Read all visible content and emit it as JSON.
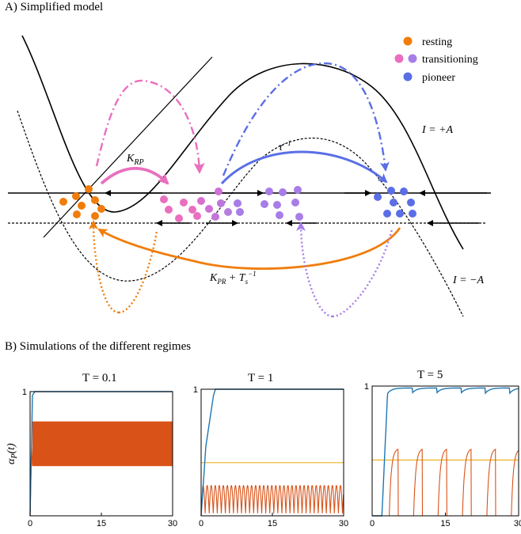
{
  "panel_a": {
    "heading": "A) Simplified model",
    "legend": [
      {
        "label": "resting",
        "colors": [
          "#f07d0b"
        ]
      },
      {
        "label": "transitioning",
        "colors": [
          "#ea6fbf",
          "#a77de8"
        ]
      },
      {
        "label": "pioneer",
        "colors": [
          "#5a6ee6"
        ]
      }
    ],
    "labels": {
      "krp": "K",
      "krp_sub": "RP",
      "tau": "τ",
      "tau_sup": "−1",
      "i_plus": "I = +A",
      "i_minus": "I = −A",
      "kpr": "K",
      "kpr_sub": "PR",
      "kpr_plus": " + T",
      "kpr_ts_sub": "s",
      "kpr_ts_sup": "−1"
    },
    "colors": {
      "resting": "#f07d0b",
      "transition_pink": "#ea6fbf",
      "transition_purple": "#a77de8",
      "pioneer": "#5a6ee6",
      "arrow_orange": "#f07d0b",
      "arrow_pink": "#ea6fbf",
      "arrow_blue": "#5a6ee6",
      "arrow_purple": "#a77de8"
    }
  },
  "panel_b": {
    "heading": "B) Simulations of the different regimes",
    "ylabel": "α",
    "ylabel_sub": "P",
    "ylabel_arg": "(t)",
    "colors": {
      "pioneer": "#1f77b4",
      "resting": "#d95319",
      "threshold": "#edb120"
    },
    "charts": [
      {
        "title": "T = 0.1",
        "xticks": [
          "0",
          "15",
          "30"
        ],
        "yticks": [
          "1"
        ]
      },
      {
        "title": "T = 1",
        "xticks": [
          "0",
          "15",
          "30"
        ],
        "yticks": [
          "1"
        ]
      },
      {
        "title": "T = 5",
        "xticks": [
          "0",
          "15",
          "30"
        ],
        "yticks": [
          "1"
        ]
      }
    ]
  },
  "chart_data": [
    {
      "type": "line",
      "title": "T = 0.1",
      "ylabel": "αP(t)",
      "xlim": [
        0,
        30
      ],
      "ylim": [
        0,
        1
      ],
      "series": [
        {
          "values_desc": "pioneer",
          "x": [
            0,
            0.5,
            1,
            30
          ],
          "y": [
            0,
            0.97,
            1,
            1
          ]
        },
        {
          "values_desc": "resting",
          "band_range": [
            0.4,
            0.76
          ],
          "x_range": [
            0,
            30
          ]
        },
        {
          "values_desc": "threshold",
          "constant": 0.42
        }
      ]
    },
    {
      "type": "line",
      "title": "T = 1",
      "xlim": [
        0,
        30
      ],
      "ylim": [
        0,
        1
      ],
      "series": [
        {
          "values_desc": "pioneer",
          "x": [
            0,
            1,
            2,
            3,
            30
          ],
          "y": [
            0,
            0.55,
            0.8,
            1,
            1
          ]
        },
        {
          "values_desc": "resting",
          "oscillation_min": 0.02,
          "oscillation_max": 0.24,
          "period": 0.85
        },
        {
          "values_desc": "threshold",
          "constant": 0.42
        }
      ]
    },
    {
      "type": "line",
      "title": "T = 5",
      "xlim": [
        0,
        30
      ],
      "ylim": [
        0,
        1
      ],
      "series": [
        {
          "values_desc": "pioneer",
          "x": [
            0,
            2,
            3,
            30
          ],
          "y": [
            0,
            0,
            0.97,
            0.98
          ]
        },
        {
          "values_desc": "resting",
          "pulse_starts": [
            3.5,
            8.5,
            13.5,
            18.5,
            23.5,
            28.5
          ],
          "pulse_peak": 0.52
        },
        {
          "values_desc": "threshold",
          "constant": 0.43
        }
      ]
    }
  ]
}
